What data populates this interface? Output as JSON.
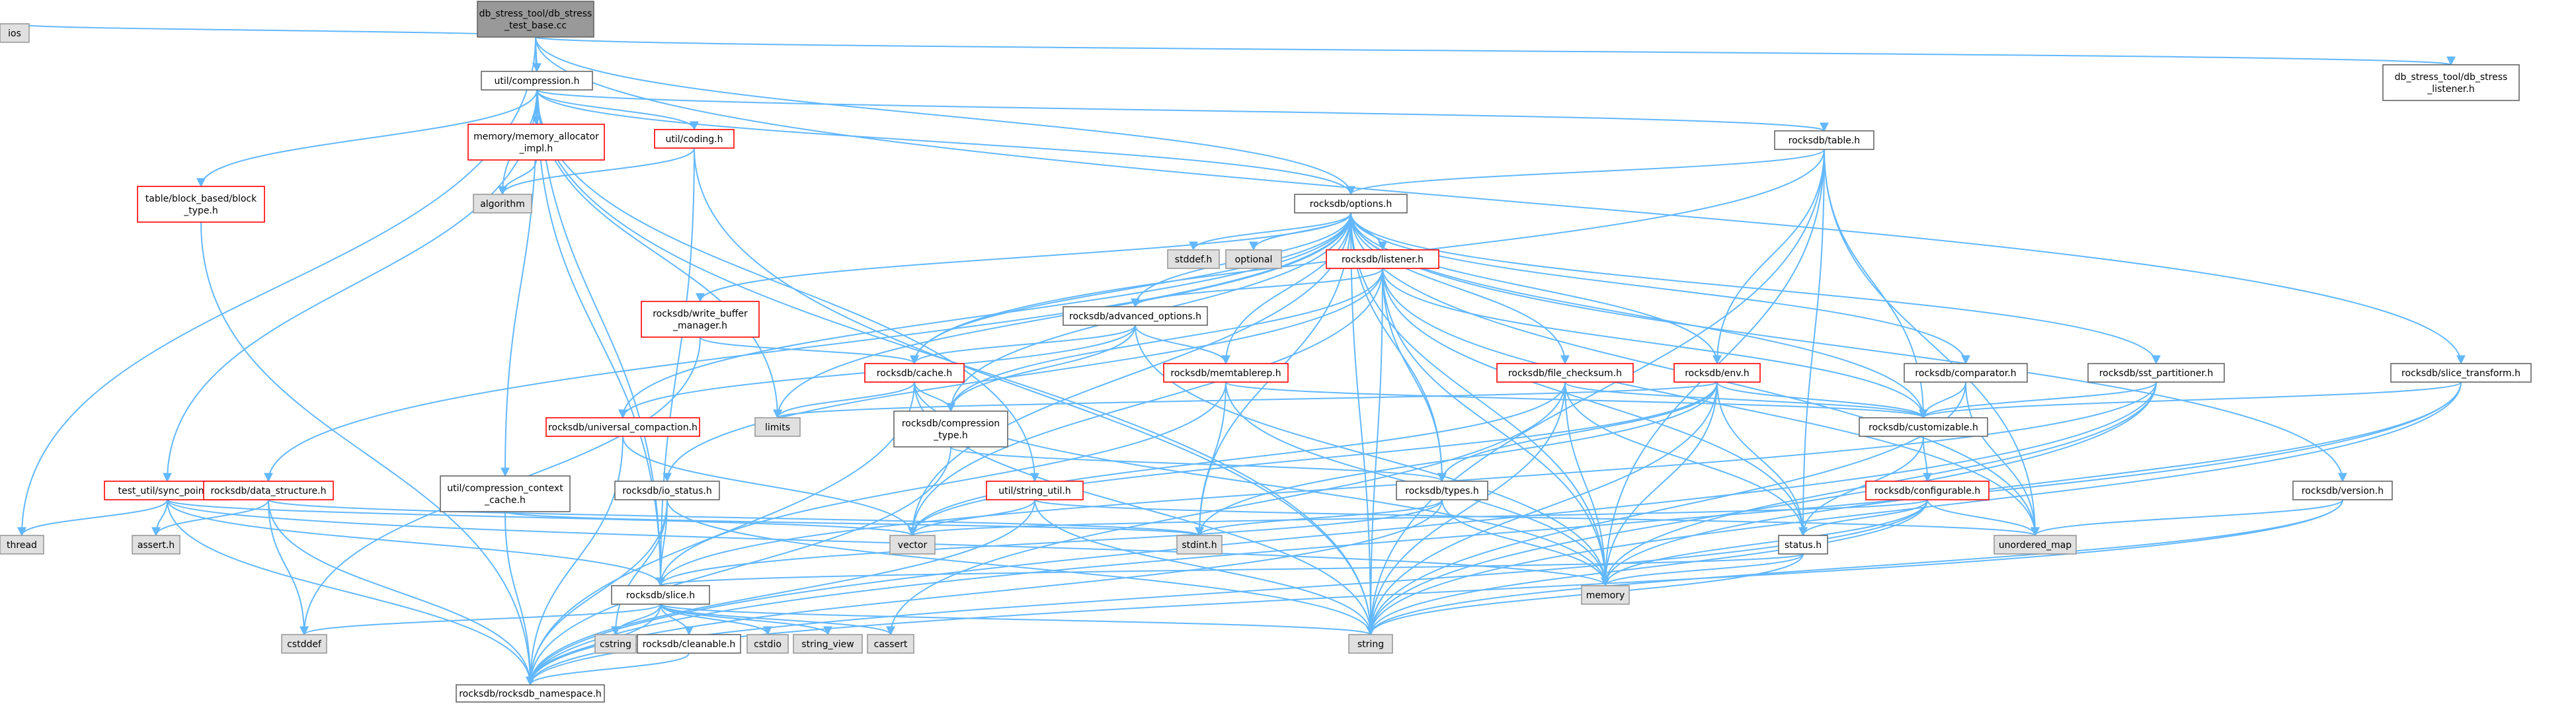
{
  "nodes": [
    {
      "id": "root",
      "lines": [
        "db_stress_tool/db_stress",
        "_test_base.cc"
      ],
      "kind": "root"
    },
    {
      "id": "ios",
      "lines": [
        "ios"
      ],
      "kind": "system"
    },
    {
      "id": "compression",
      "lines": [
        "util/compression.h"
      ],
      "kind": "file"
    },
    {
      "id": "listener_h",
      "lines": [
        "db_stress_tool/db_stress",
        "_listener.h"
      ],
      "kind": "file"
    },
    {
      "id": "block_type",
      "lines": [
        "table/block_based/block",
        "_type.h"
      ],
      "kind": "missing"
    },
    {
      "id": "mem_alloc",
      "lines": [
        "memory/memory_allocator",
        "_impl.h"
      ],
      "kind": "missing"
    },
    {
      "id": "coding",
      "lines": [
        "util/coding.h"
      ],
      "kind": "missing"
    },
    {
      "id": "algorithm",
      "lines": [
        "algorithm"
      ],
      "kind": "system"
    },
    {
      "id": "table",
      "lines": [
        "rocksdb/table.h"
      ],
      "kind": "file"
    },
    {
      "id": "options",
      "lines": [
        "rocksdb/options.h"
      ],
      "kind": "file"
    },
    {
      "id": "stddef",
      "lines": [
        "stddef.h"
      ],
      "kind": "system"
    },
    {
      "id": "optional",
      "lines": [
        "optional"
      ],
      "kind": "system"
    },
    {
      "id": "rlistener",
      "lines": [
        "rocksdb/listener.h"
      ],
      "kind": "missing"
    },
    {
      "id": "write_buffer",
      "lines": [
        "rocksdb/write_buffer",
        "_manager.h"
      ],
      "kind": "missing"
    },
    {
      "id": "adv_options",
      "lines": [
        "rocksdb/advanced_options.h"
      ],
      "kind": "file"
    },
    {
      "id": "cache",
      "lines": [
        "rocksdb/cache.h"
      ],
      "kind": "missing"
    },
    {
      "id": "memtablerep",
      "lines": [
        "rocksdb/memtablerep.h"
      ],
      "kind": "missing"
    },
    {
      "id": "file_checksum",
      "lines": [
        "rocksdb/file_checksum.h"
      ],
      "kind": "missing"
    },
    {
      "id": "env",
      "lines": [
        "rocksdb/env.h"
      ],
      "kind": "missing"
    },
    {
      "id": "comparator",
      "lines": [
        "rocksdb/comparator.h"
      ],
      "kind": "file"
    },
    {
      "id": "sst_partitioner",
      "lines": [
        "rocksdb/sst_partitioner.h"
      ],
      "kind": "file"
    },
    {
      "id": "slice_transform",
      "lines": [
        "rocksdb/slice_transform.h"
      ],
      "kind": "file"
    },
    {
      "id": "limits",
      "lines": [
        "limits"
      ],
      "kind": "system"
    },
    {
      "id": "comp_type",
      "lines": [
        "rocksdb/compression",
        "_type.h"
      ],
      "kind": "file"
    },
    {
      "id": "universal",
      "lines": [
        "rocksdb/universal_compaction.h"
      ],
      "kind": "missing"
    },
    {
      "id": "customizable",
      "lines": [
        "rocksdb/customizable.h"
      ],
      "kind": "file"
    },
    {
      "id": "sync_point",
      "lines": [
        "test_util/sync_point.h"
      ],
      "kind": "missing"
    },
    {
      "id": "data_structure",
      "lines": [
        "rocksdb/data_structure.h"
      ],
      "kind": "missing"
    },
    {
      "id": "comp_ctx_cache",
      "lines": [
        "util/compression_context",
        "_cache.h"
      ],
      "kind": "file"
    },
    {
      "id": "io_status",
      "lines": [
        "rocksdb/io_status.h"
      ],
      "kind": "file"
    },
    {
      "id": "string_util",
      "lines": [
        "util/string_util.h"
      ],
      "kind": "missing"
    },
    {
      "id": "types",
      "lines": [
        "rocksdb/types.h"
      ],
      "kind": "file"
    },
    {
      "id": "configurable",
      "lines": [
        "rocksdb/configurable.h"
      ],
      "kind": "missing"
    },
    {
      "id": "version",
      "lines": [
        "rocksdb/version.h"
      ],
      "kind": "file"
    },
    {
      "id": "thread",
      "lines": [
        "thread"
      ],
      "kind": "system"
    },
    {
      "id": "assert",
      "lines": [
        "assert.h"
      ],
      "kind": "system"
    },
    {
      "id": "vector",
      "lines": [
        "vector"
      ],
      "kind": "system"
    },
    {
      "id": "stdint",
      "lines": [
        "stdint.h"
      ],
      "kind": "system"
    },
    {
      "id": "status",
      "lines": [
        "status.h"
      ],
      "kind": "file"
    },
    {
      "id": "unordered_map",
      "lines": [
        "unordered_map"
      ],
      "kind": "system"
    },
    {
      "id": "memory",
      "lines": [
        "memory"
      ],
      "kind": "system"
    },
    {
      "id": "slice",
      "lines": [
        "rocksdb/slice.h"
      ],
      "kind": "file"
    },
    {
      "id": "cstddef",
      "lines": [
        "cstddef"
      ],
      "kind": "system"
    },
    {
      "id": "cstring",
      "lines": [
        "cstring"
      ],
      "kind": "system"
    },
    {
      "id": "cleanable",
      "lines": [
        "rocksdb/cleanable.h"
      ],
      "kind": "file"
    },
    {
      "id": "cstdio",
      "lines": [
        "cstdio"
      ],
      "kind": "system"
    },
    {
      "id": "string_view",
      "lines": [
        "string_view"
      ],
      "kind": "system"
    },
    {
      "id": "cassert",
      "lines": [
        "cassert"
      ],
      "kind": "system"
    },
    {
      "id": "string",
      "lines": [
        "string"
      ],
      "kind": "system"
    },
    {
      "id": "namespace",
      "lines": [
        "rocksdb/rocksdb_namespace.h"
      ],
      "kind": "file"
    }
  ],
  "edges": [
    [
      "root",
      "ios"
    ],
    [
      "root",
      "compression"
    ],
    [
      "root",
      "listener_h"
    ],
    [
      "root",
      "thread"
    ],
    [
      "root",
      "options"
    ],
    [
      "root",
      "slice"
    ],
    [
      "root",
      "slice_transform"
    ],
    [
      "compression",
      "block_type"
    ],
    [
      "compression",
      "mem_alloc"
    ],
    [
      "compression",
      "coding"
    ],
    [
      "compression",
      "algorithm"
    ],
    [
      "compression",
      "table"
    ],
    [
      "compression",
      "options"
    ],
    [
      "compression",
      "sync_point"
    ],
    [
      "compression",
      "comp_ctx_cache"
    ],
    [
      "compression",
      "string_util"
    ],
    [
      "compression",
      "slice"
    ],
    [
      "compression",
      "limits"
    ],
    [
      "compression",
      "string"
    ],
    [
      "block_type",
      "namespace"
    ],
    [
      "mem_alloc",
      "algorithm"
    ],
    [
      "coding",
      "algorithm"
    ],
    [
      "coding",
      "slice"
    ],
    [
      "coding",
      "string"
    ],
    [
      "table",
      "options"
    ],
    [
      "table",
      "cache"
    ],
    [
      "table",
      "env"
    ],
    [
      "table",
      "customizable"
    ],
    [
      "table",
      "status"
    ],
    [
      "table",
      "unordered_map"
    ],
    [
      "table",
      "memory"
    ],
    [
      "table",
      "string"
    ],
    [
      "options",
      "stddef"
    ],
    [
      "options",
      "optional"
    ],
    [
      "options",
      "rlistener"
    ],
    [
      "options",
      "write_buffer"
    ],
    [
      "options",
      "adv_options"
    ],
    [
      "options",
      "cache"
    ],
    [
      "options",
      "memtablerep"
    ],
    [
      "options",
      "file_checksum"
    ],
    [
      "options",
      "env"
    ],
    [
      "options",
      "comparator"
    ],
    [
      "options",
      "sst_partitioner"
    ],
    [
      "options",
      "version"
    ],
    [
      "options",
      "comp_type"
    ],
    [
      "options",
      "universal"
    ],
    [
      "options",
      "customizable"
    ],
    [
      "options",
      "data_structure"
    ],
    [
      "options",
      "types"
    ],
    [
      "options",
      "unordered_map"
    ],
    [
      "options",
      "memory"
    ],
    [
      "options",
      "vector"
    ],
    [
      "options",
      "stdint"
    ],
    [
      "options",
      "limits"
    ],
    [
      "options",
      "string"
    ],
    [
      "rlistener",
      "adv_options"
    ],
    [
      "rlistener",
      "comp_type"
    ],
    [
      "rlistener",
      "customizable"
    ],
    [
      "rlistener",
      "io_status"
    ],
    [
      "rlistener",
      "status"
    ],
    [
      "rlistener",
      "types"
    ],
    [
      "rlistener",
      "memory"
    ],
    [
      "rlistener",
      "string"
    ],
    [
      "rlistener",
      "unordered_map"
    ],
    [
      "rlistener",
      "vector"
    ],
    [
      "write_buffer",
      "cache"
    ],
    [
      "write_buffer",
      "cstddef"
    ],
    [
      "adv_options",
      "cache"
    ],
    [
      "adv_options",
      "memtablerep"
    ],
    [
      "adv_options",
      "universal"
    ],
    [
      "adv_options",
      "comp_type"
    ],
    [
      "adv_options",
      "memory"
    ],
    [
      "cache",
      "comp_type"
    ],
    [
      "cache",
      "limits"
    ],
    [
      "cache",
      "memory"
    ],
    [
      "cache",
      "string"
    ],
    [
      "cache",
      "namespace"
    ],
    [
      "memtablerep",
      "customizable"
    ],
    [
      "memtablerep",
      "stdint"
    ],
    [
      "memtablerep",
      "memory"
    ],
    [
      "memtablerep",
      "slice"
    ],
    [
      "file_checksum",
      "customizable"
    ],
    [
      "file_checksum",
      "status"
    ],
    [
      "file_checksum",
      "memory"
    ],
    [
      "file_checksum",
      "string"
    ],
    [
      "file_checksum",
      "vector"
    ],
    [
      "file_checksum",
      "cassert"
    ],
    [
      "env",
      "customizable"
    ],
    [
      "env",
      "status"
    ],
    [
      "env",
      "types"
    ],
    [
      "env",
      "memory"
    ],
    [
      "env",
      "string"
    ],
    [
      "env",
      "vector"
    ],
    [
      "env",
      "limits"
    ],
    [
      "env",
      "stdint"
    ],
    [
      "comparator",
      "customizable"
    ],
    [
      "comparator",
      "unordered_map"
    ],
    [
      "comparator",
      "string"
    ],
    [
      "sst_partitioner",
      "customizable"
    ],
    [
      "sst_partitioner",
      "memory"
    ],
    [
      "sst_partitioner",
      "string"
    ],
    [
      "sst_partitioner",
      "slice"
    ],
    [
      "sst_partitioner",
      "namespace"
    ],
    [
      "slice_transform",
      "customizable"
    ],
    [
      "slice_transform",
      "memory"
    ],
    [
      "slice_transform",
      "string"
    ],
    [
      "slice_transform",
      "namespace"
    ],
    [
      "comp_type",
      "types"
    ],
    [
      "comp_type",
      "namespace"
    ],
    [
      "universal",
      "vector"
    ],
    [
      "universal",
      "namespace"
    ],
    [
      "customizable",
      "configurable"
    ],
    [
      "customizable",
      "status"
    ],
    [
      "configurable",
      "status"
    ],
    [
      "configurable",
      "unordered_map"
    ],
    [
      "configurable",
      "memory"
    ],
    [
      "configurable",
      "string"
    ],
    [
      "configurable",
      "vector"
    ],
    [
      "configurable",
      "namespace"
    ],
    [
      "version",
      "unordered_map"
    ],
    [
      "version",
      "string"
    ],
    [
      "version",
      "namespace"
    ],
    [
      "sync_point",
      "thread"
    ],
    [
      "sync_point",
      "assert"
    ],
    [
      "sync_point",
      "vector"
    ],
    [
      "sync_point",
      "memory"
    ],
    [
      "sync_point",
      "slice"
    ],
    [
      "sync_point",
      "namespace"
    ],
    [
      "data_structure",
      "assert"
    ],
    [
      "data_structure",
      "cstddef"
    ],
    [
      "data_structure",
      "stdint"
    ],
    [
      "data_structure",
      "namespace"
    ],
    [
      "comp_ctx_cache",
      "stdint"
    ],
    [
      "comp_ctx_cache",
      "namespace"
    ],
    [
      "io_status",
      "slice"
    ],
    [
      "io_status",
      "cstring"
    ],
    [
      "io_status",
      "string"
    ],
    [
      "io_status",
      "namespace"
    ],
    [
      "string_util",
      "unordered_map"
    ],
    [
      "string_util",
      "vector"
    ],
    [
      "string_util",
      "string"
    ],
    [
      "string_util",
      "namespace"
    ],
    [
      "types",
      "stdint"
    ],
    [
      "types",
      "slice"
    ],
    [
      "types",
      "memory"
    ],
    [
      "types",
      "namespace"
    ],
    [
      "status",
      "memory"
    ],
    [
      "status",
      "string"
    ],
    [
      "status",
      "slice"
    ],
    [
      "slice",
      "cstddef"
    ],
    [
      "slice",
      "cstring"
    ],
    [
      "slice",
      "cleanable"
    ],
    [
      "slice",
      "cstdio"
    ],
    [
      "slice",
      "string_view"
    ],
    [
      "slice",
      "cassert"
    ],
    [
      "slice",
      "string"
    ],
    [
      "slice",
      "namespace"
    ],
    [
      "cleanable",
      "namespace"
    ]
  ]
}
